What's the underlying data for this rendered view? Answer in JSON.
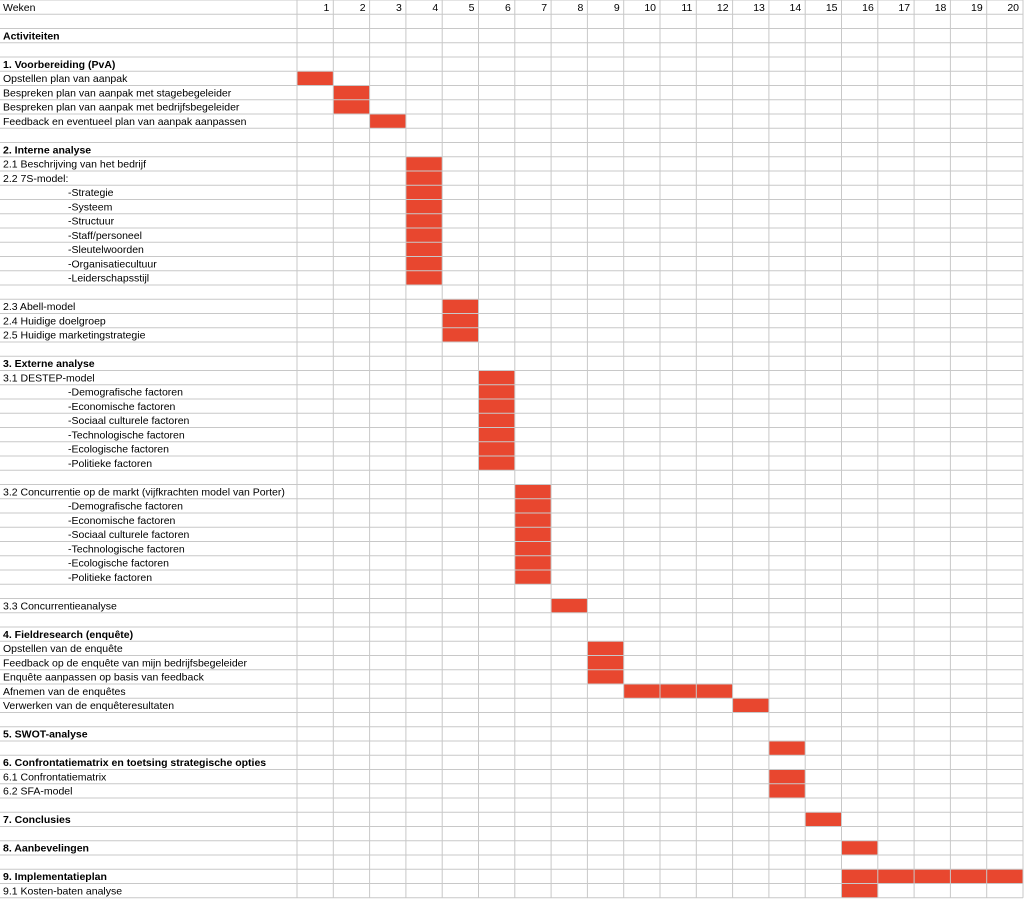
{
  "chart_data": {
    "type": "gantt",
    "header_label": "Weken",
    "weeks": [
      "1",
      "2",
      "3",
      "4",
      "5",
      "6",
      "7",
      "8",
      "9",
      "10",
      "11",
      "12",
      "13",
      "14",
      "15",
      "16",
      "17",
      "18",
      "19",
      "20"
    ],
    "bar_color": "#e8472f",
    "grid_color": "#c8c8c8",
    "rows": [
      {
        "label": "",
        "bold": false,
        "indent": false
      },
      {
        "label": "Activiteiten",
        "bold": true,
        "indent": false
      },
      {
        "label": "",
        "bold": false,
        "indent": false
      },
      {
        "label": "1. Voorbereiding (PvA)",
        "bold": true,
        "indent": false
      },
      {
        "label": "Opstellen plan van aanpak",
        "bold": false,
        "indent": false,
        "start_week": 1,
        "end_week": 1
      },
      {
        "label": "Bespreken plan van aanpak met stagebegeleider",
        "bold": false,
        "indent": false,
        "start_week": 2,
        "end_week": 2
      },
      {
        "label": "Bespreken plan van aanpak met bedrijfsbegeleider",
        "bold": false,
        "indent": false,
        "start_week": 2,
        "end_week": 2
      },
      {
        "label": "Feedback en eventueel plan van aanpak aanpassen",
        "bold": false,
        "indent": false,
        "start_week": 3,
        "end_week": 3
      },
      {
        "label": "",
        "bold": false,
        "indent": false
      },
      {
        "label": "2. Interne analyse",
        "bold": true,
        "indent": false
      },
      {
        "label": "2.1 Beschrijving van het bedrijf",
        "bold": false,
        "indent": false,
        "start_week": 4,
        "end_week": 4
      },
      {
        "label": "2.2 7S-model:",
        "bold": false,
        "indent": false,
        "start_week": 4,
        "end_week": 4
      },
      {
        "label": "-Strategie",
        "bold": false,
        "indent": true,
        "start_week": 4,
        "end_week": 4
      },
      {
        "label": "-Systeem",
        "bold": false,
        "indent": true,
        "start_week": 4,
        "end_week": 4
      },
      {
        "label": "-Structuur",
        "bold": false,
        "indent": true,
        "start_week": 4,
        "end_week": 4
      },
      {
        "label": "-Staff/personeel",
        "bold": false,
        "indent": true,
        "start_week": 4,
        "end_week": 4
      },
      {
        "label": "-Sleutelwoorden",
        "bold": false,
        "indent": true,
        "start_week": 4,
        "end_week": 4
      },
      {
        "label": "-Organisatiecultuur",
        "bold": false,
        "indent": true,
        "start_week": 4,
        "end_week": 4
      },
      {
        "label": "-Leiderschapsstijl",
        "bold": false,
        "indent": true,
        "start_week": 4,
        "end_week": 4
      },
      {
        "label": "",
        "bold": false,
        "indent": false
      },
      {
        "label": "2.3 Abell-model",
        "bold": false,
        "indent": false,
        "start_week": 5,
        "end_week": 5
      },
      {
        "label": "2.4 Huidige doelgroep",
        "bold": false,
        "indent": false,
        "start_week": 5,
        "end_week": 5
      },
      {
        "label": "2.5 Huidige marketingstrategie",
        "bold": false,
        "indent": false,
        "start_week": 5,
        "end_week": 5
      },
      {
        "label": "",
        "bold": false,
        "indent": false
      },
      {
        "label": "3. Externe analyse",
        "bold": true,
        "indent": false
      },
      {
        "label": "3.1 DESTEP-model",
        "bold": false,
        "indent": false,
        "start_week": 6,
        "end_week": 6
      },
      {
        "label": "-Demografische factoren",
        "bold": false,
        "indent": true,
        "start_week": 6,
        "end_week": 6
      },
      {
        "label": "-Economische factoren",
        "bold": false,
        "indent": true,
        "start_week": 6,
        "end_week": 6
      },
      {
        "label": "-Sociaal culturele factoren",
        "bold": false,
        "indent": true,
        "start_week": 6,
        "end_week": 6
      },
      {
        "label": "-Technologische factoren",
        "bold": false,
        "indent": true,
        "start_week": 6,
        "end_week": 6
      },
      {
        "label": "-Ecologische factoren",
        "bold": false,
        "indent": true,
        "start_week": 6,
        "end_week": 6
      },
      {
        "label": "-Politieke factoren",
        "bold": false,
        "indent": true,
        "start_week": 6,
        "end_week": 6
      },
      {
        "label": "",
        "bold": false,
        "indent": false
      },
      {
        "label": "3.2 Concurrentie op de markt (vijfkrachten model van Porter)",
        "bold": false,
        "indent": false,
        "start_week": 7,
        "end_week": 7
      },
      {
        "label": "-Demografische factoren",
        "bold": false,
        "indent": true,
        "start_week": 7,
        "end_week": 7
      },
      {
        "label": "-Economische factoren",
        "bold": false,
        "indent": true,
        "start_week": 7,
        "end_week": 7
      },
      {
        "label": "-Sociaal culturele factoren",
        "bold": false,
        "indent": true,
        "start_week": 7,
        "end_week": 7
      },
      {
        "label": "-Technologische factoren",
        "bold": false,
        "indent": true,
        "start_week": 7,
        "end_week": 7
      },
      {
        "label": "-Ecologische factoren",
        "bold": false,
        "indent": true,
        "start_week": 7,
        "end_week": 7
      },
      {
        "label": "-Politieke factoren",
        "bold": false,
        "indent": true,
        "start_week": 7,
        "end_week": 7
      },
      {
        "label": "",
        "bold": false,
        "indent": false
      },
      {
        "label": "3.3 Concurrentieanalyse",
        "bold": false,
        "indent": false,
        "start_week": 8,
        "end_week": 8
      },
      {
        "label": "",
        "bold": false,
        "indent": false
      },
      {
        "label": "4. Fieldresearch (enquête)",
        "bold": true,
        "indent": false
      },
      {
        "label": "Opstellen van de enquête",
        "bold": false,
        "indent": false,
        "start_week": 9,
        "end_week": 9
      },
      {
        "label": "Feedback op de enquête van mijn bedrijfsbegeleider",
        "bold": false,
        "indent": false,
        "start_week": 9,
        "end_week": 9
      },
      {
        "label": "Enquête aanpassen op basis van feedback",
        "bold": false,
        "indent": false,
        "start_week": 9,
        "end_week": 9
      },
      {
        "label": "Afnemen van de enquêtes",
        "bold": false,
        "indent": false,
        "start_week": 10,
        "end_week": 12
      },
      {
        "label": "Verwerken van de enquêteresultaten",
        "bold": false,
        "indent": false,
        "start_week": 13,
        "end_week": 13
      },
      {
        "label": "",
        "bold": false,
        "indent": false
      },
      {
        "label": "5. SWOT-analyse",
        "bold": true,
        "indent": false
      },
      {
        "label": "",
        "bold": false,
        "indent": false,
        "start_week": 14,
        "end_week": 14
      },
      {
        "label": "6. Confrontatiematrix en toetsing strategische opties",
        "bold": true,
        "indent": false
      },
      {
        "label": "6.1 Confrontatiematrix",
        "bold": false,
        "indent": false,
        "start_week": 14,
        "end_week": 14
      },
      {
        "label": "6.2 SFA-model",
        "bold": false,
        "indent": false,
        "start_week": 14,
        "end_week": 14
      },
      {
        "label": "",
        "bold": false,
        "indent": false
      },
      {
        "label": "7. Conclusies",
        "bold": true,
        "indent": false,
        "start_week": 15,
        "end_week": 15
      },
      {
        "label": "",
        "bold": false,
        "indent": false
      },
      {
        "label": "8. Aanbevelingen",
        "bold": true,
        "indent": false,
        "start_week": 16,
        "end_week": 16
      },
      {
        "label": "",
        "bold": false,
        "indent": false
      },
      {
        "label": "9. Implementatieplan",
        "bold": true,
        "indent": false,
        "start_week": 16,
        "end_week": 20
      },
      {
        "label": "9.1 Kosten-baten analyse",
        "bold": false,
        "indent": false,
        "start_week": 16,
        "end_week": 16
      }
    ]
  }
}
